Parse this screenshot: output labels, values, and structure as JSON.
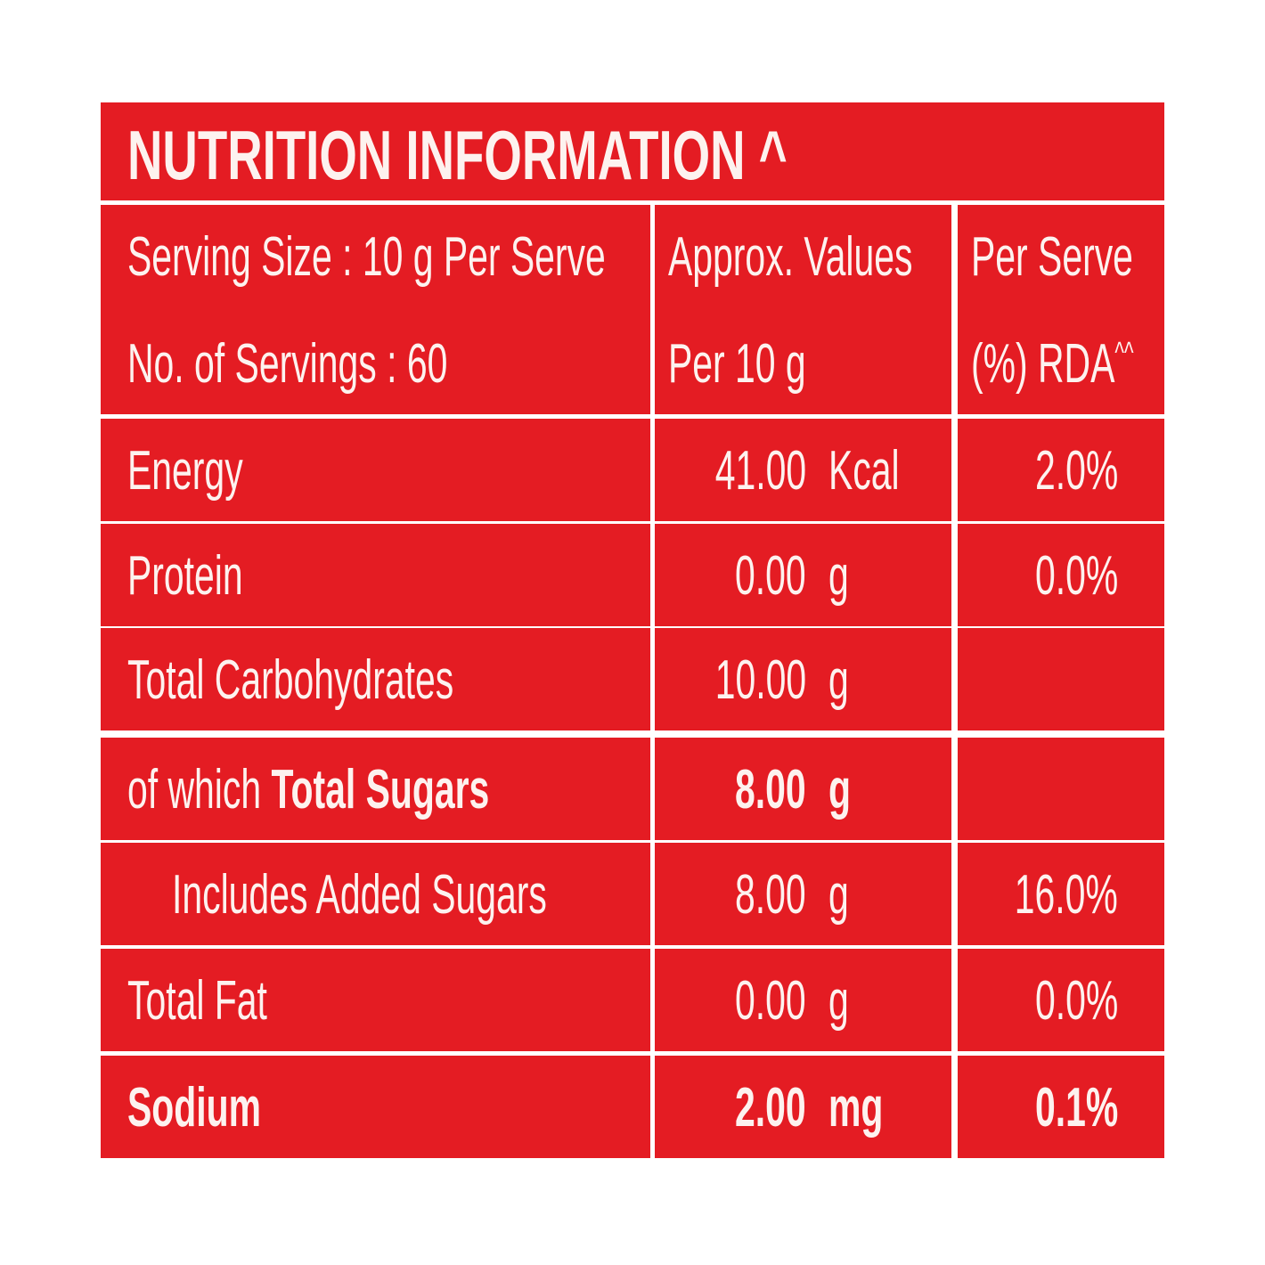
{
  "title": "NUTRITION INFORMATION ^",
  "header": {
    "serving": [
      "Serving Size : 10 g Per Serve",
      "No. of Servings : 60"
    ],
    "values": [
      "Approx. Values",
      "Per 10 g"
    ],
    "rda": [
      "Per Serve",
      "(%) RDA"
    ],
    "rda_sup": "^^"
  },
  "rows": [
    {
      "name": "Energy",
      "value": "41.00",
      "unit": "Kcal",
      "rda": "2.0%"
    },
    {
      "name": "Protein",
      "value": "0.00",
      "unit": "g",
      "rda": "0.0%"
    },
    {
      "name": "Total Carbohydrates",
      "value": "10.00",
      "unit": "g"
    },
    {
      "prefix": "of which",
      "name": "Total Sugars",
      "value": "8.00",
      "unit": "g",
      "bold": true
    },
    {
      "name": "Includes Added Sugars",
      "value": "8.00",
      "unit": "g",
      "rda": "16.0%",
      "indent": true
    },
    {
      "name": "Total Fat",
      "value": "0.00",
      "unit": "g",
      "rda": "0.0%"
    },
    {
      "name": "Sodium",
      "value": "2.00",
      "unit": "mg",
      "rda": "0.1%",
      "bold": true,
      "bold_name": true
    }
  ]
}
